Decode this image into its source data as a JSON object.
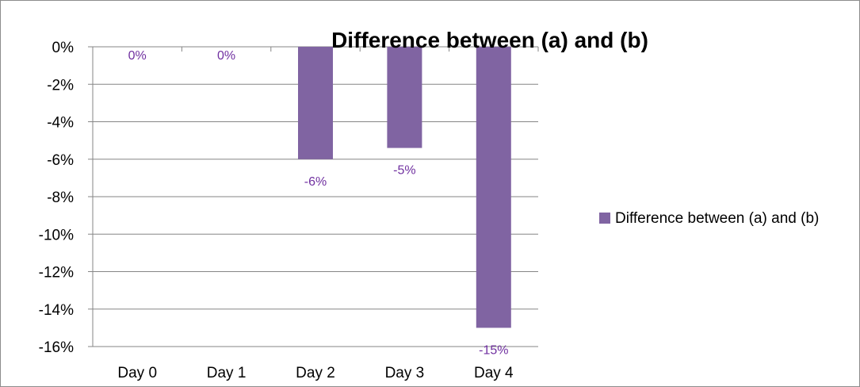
{
  "chart_data": {
    "type": "bar",
    "title": "Difference between (a) and (b)",
    "categories": [
      "Day 0",
      "Day 1",
      "Day 2",
      "Day 3",
      "Day 4"
    ],
    "series": [
      {
        "name": "Difference between (a) and (b)",
        "values": [
          0,
          0,
          -6.0,
          -5.4,
          -15.0
        ],
        "data_labels": [
          "0%",
          "0%",
          "-6%",
          "-5%",
          "-15%"
        ],
        "color": "#8064a2"
      }
    ],
    "ylim": [
      -16,
      0
    ],
    "yticks": [
      0,
      -2,
      -4,
      -6,
      -8,
      -10,
      -12,
      -14,
      -16
    ],
    "ytick_labels": [
      "0%",
      "-2%",
      "-4%",
      "-6%",
      "-8%",
      "-10%",
      "-12%",
      "-14%",
      "-16%"
    ],
    "ylabel": "",
    "xlabel": "",
    "grid": true,
    "legend_position": "right",
    "gridline_color": "#868686",
    "data_label_color": "#7030a0"
  }
}
